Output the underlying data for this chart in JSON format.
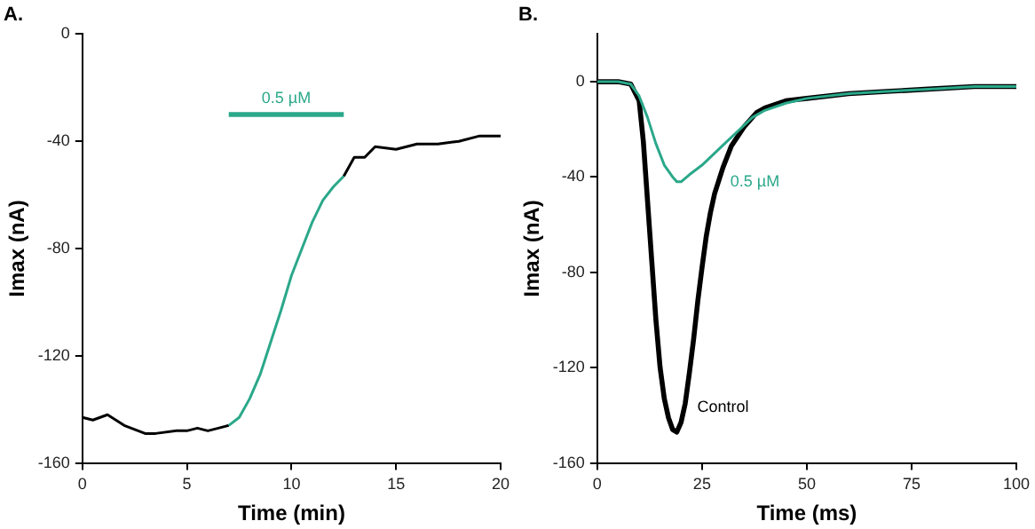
{
  "chart_data": [
    {
      "type": "line",
      "title": "A.",
      "xlabel": "Time (min)",
      "ylabel": "Imax (nA)",
      "xlim": [
        0,
        20
      ],
      "xticks": [
        0,
        5,
        10,
        15,
        20
      ],
      "ylim": [
        -160,
        0
      ],
      "yticks": [
        -160,
        -120,
        -80,
        -40,
        0
      ],
      "grid": false,
      "legend": false,
      "marker": "none",
      "line_style": "solid",
      "series": [
        {
          "color": "#000000",
          "x": [
            0,
            0.5,
            1.2,
            2,
            3,
            3.5,
            4.5,
            5,
            5.5,
            6,
            6.5,
            7
          ],
          "values": [
            -143,
            -144,
            -142,
            -146,
            -149,
            -149,
            -148,
            -148,
            -147,
            -148,
            -147,
            -146
          ]
        },
        {
          "color": "#2aa88a",
          "x": [
            7,
            7.5,
            8,
            8.5,
            9,
            9.5,
            10,
            10.5,
            11,
            11.5,
            12,
            12.5
          ],
          "values": [
            -146,
            -143,
            -136,
            -127,
            -115,
            -103,
            -90,
            -80,
            -70,
            -62,
            -57,
            -53
          ]
        },
        {
          "color": "#000000",
          "x": [
            12.5,
            13,
            13.5,
            14,
            15,
            16,
            17,
            18,
            19,
            20
          ],
          "values": [
            -53,
            -46,
            -46,
            -42,
            -43,
            -41,
            -41,
            -40,
            -38,
            -38
          ]
        },
        {
          "name": "0.5 µM",
          "color": "#2aa88a",
          "x": [
            7,
            12.5
          ],
          "values": [
            -30,
            -30
          ]
        }
      ]
    },
    {
      "type": "line",
      "title": "B.",
      "xlabel": "Time (ms)",
      "ylabel": "Imax (nA)",
      "xlim": [
        0,
        100
      ],
      "xticks": [
        0,
        25,
        50,
        75,
        100
      ],
      "ylim": [
        -160,
        20
      ],
      "yticks": [
        -160,
        -120,
        -80,
        -40,
        0
      ],
      "grid": false,
      "legend": false,
      "marker": "none",
      "line_style": "solid",
      "series": [
        {
          "name": "Control",
          "color": "#000000",
          "x": [
            0,
            5,
            8,
            10,
            11,
            12,
            13,
            14,
            15,
            16,
            17,
            18,
            19,
            20,
            21,
            22,
            23,
            24,
            25,
            26,
            27,
            28,
            30,
            32,
            35,
            38,
            40,
            45,
            50,
            60,
            70,
            80,
            90,
            100
          ],
          "values": [
            0,
            0,
            -1,
            -8,
            -25,
            -50,
            -75,
            -100,
            -120,
            -133,
            -141,
            -146,
            -147,
            -143,
            -135,
            -122,
            -108,
            -92,
            -78,
            -65,
            -55,
            -47,
            -36,
            -27,
            -19,
            -13,
            -11,
            -8,
            -7,
            -5,
            -4,
            -3,
            -2,
            -2
          ]
        },
        {
          "name": "0.5 µM",
          "color": "#2aa88a",
          "x": [
            0,
            5,
            8,
            10,
            12,
            14,
            16,
            18,
            19,
            20,
            22,
            25,
            28,
            31,
            34,
            37,
            40,
            45,
            50,
            60,
            70,
            80,
            90,
            100
          ],
          "values": [
            0,
            0,
            -1,
            -6,
            -15,
            -26,
            -35,
            -40,
            -42,
            -42,
            -39,
            -35,
            -30,
            -25,
            -20,
            -15,
            -12,
            -9,
            -7,
            -5,
            -4,
            -3,
            -2,
            -2
          ]
        }
      ]
    }
  ]
}
